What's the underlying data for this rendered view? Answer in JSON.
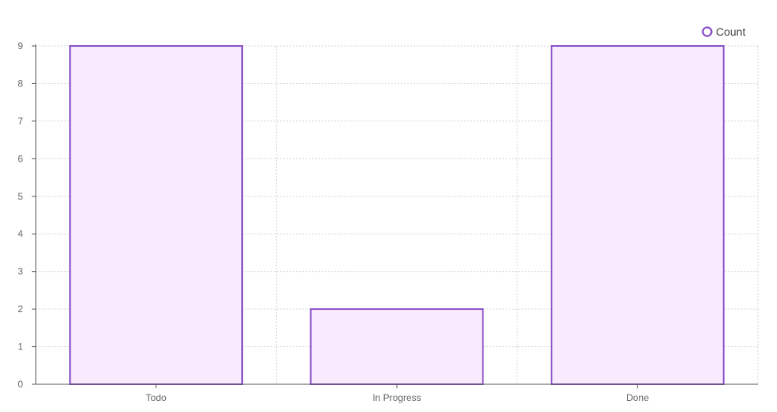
{
  "chart_data": {
    "type": "bar",
    "categories": [
      "Todo",
      "In Progress",
      "Done"
    ],
    "series": [
      {
        "name": "Count",
        "values": [
          9,
          2,
          9
        ]
      }
    ],
    "ylim": [
      0,
      9
    ],
    "yticks": [
      "0",
      "1",
      "2",
      "3",
      "4",
      "5",
      "6",
      "7",
      "8",
      "9"
    ],
    "grid": true,
    "legend_position": "top-right",
    "colors": {
      "bar_fill": "#f9ebfd",
      "bar_stroke": "#8a4fc8",
      "grid": "#d6d6d6",
      "axis": "#555555"
    }
  }
}
